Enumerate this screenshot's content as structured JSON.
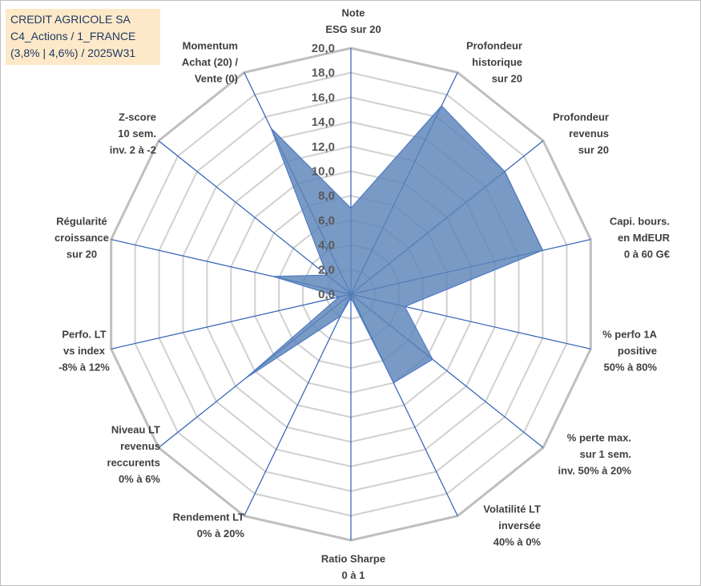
{
  "title": {
    "line1": "CREDIT AGRICOLE SA",
    "line2": "C4_Actions / 1_FRANCE",
    "line3": "(3,8% | 4,6%) / 2025W31"
  },
  "chart_data": {
    "type": "radar",
    "rmin": 0,
    "rmax": 20,
    "ticks": [
      "0,0",
      "2,0",
      "4,0",
      "6,0",
      "8,0",
      "10,0",
      "12,0",
      "14,0",
      "16,0",
      "18,0",
      "20,0"
    ],
    "grid": true,
    "colors": {
      "fill": "#5b84b8",
      "stroke": "#4472c4",
      "grid": "#d0d0d0",
      "spoke": "#2e5fb5"
    },
    "axes": [
      {
        "label": [
          "Note",
          "ESG sur 20"
        ],
        "value": 7.0
      },
      {
        "label": [
          "Profondeur",
          "historique",
          "sur 20"
        ],
        "value": 17.0
      },
      {
        "label": [
          "Profondeur",
          "revenus",
          "sur 20"
        ],
        "value": 16.0
      },
      {
        "label": [
          "Capi. bours.",
          "en MdEUR",
          "0 à 60 G€"
        ],
        "value": 16.0
      },
      {
        "label": [
          "% perfo 1A",
          "positive",
          "50% à 80%"
        ],
        "value": 4.5
      },
      {
        "label": [
          "% perte max.",
          "sur 1 sem.",
          "inv. 50% à 20%"
        ],
        "value": 8.5
      },
      {
        "label": [
          "Volatilité LT",
          "inversée",
          "40% à 0%"
        ],
        "value": 8.0
      },
      {
        "label": [
          "Ratio Sharpe",
          "0 à 1"
        ],
        "value": 0.3
      },
      {
        "label": [
          "Rendement LT",
          "0% à 20%"
        ],
        "value": 2.0
      },
      {
        "label": [
          "Niveau LT",
          "revenus",
          "reccurents",
          "0% à 6%"
        ],
        "value": 11.0
      },
      {
        "label": [
          "Perfo. LT",
          "vs index",
          "-8% à 12%"
        ],
        "value": 1.0
      },
      {
        "label": [
          "Régularité",
          "croissance",
          "sur 20"
        ],
        "value": 6.5
      },
      {
        "label": [
          "Z-score",
          "10 sem.",
          "inv. 2 à -2"
        ],
        "value": 2.5
      },
      {
        "label": [
          "Momentum",
          "Achat (20) /",
          "Vente (0)"
        ],
        "value": 15.0
      }
    ]
  }
}
